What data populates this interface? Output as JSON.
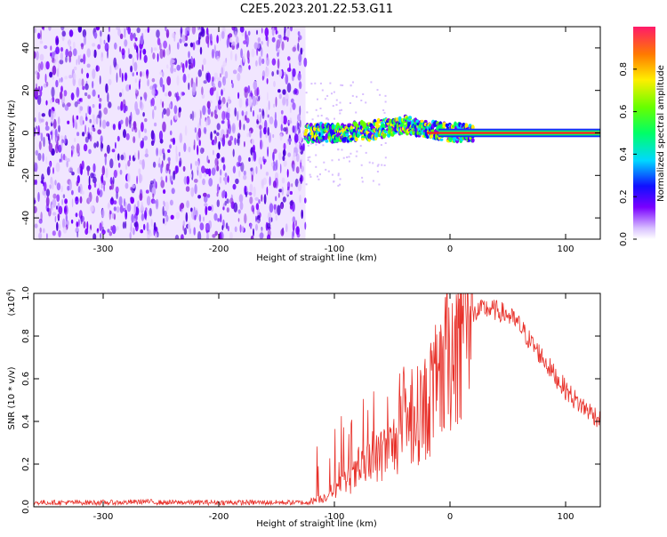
{
  "title": "C2E5.2023.201.22.53.G11",
  "chart_data": [
    {
      "type": "heatmap",
      "title": "C2E5.2023.201.22.53.G11",
      "xlabel": "Height of straight line (km)",
      "ylabel": "Frequency (Hz)",
      "xlim": [
        -360,
        130
      ],
      "ylim": [
        -50,
        50
      ],
      "xticks": [
        -300,
        -200,
        -100,
        0,
        100
      ],
      "yticks": [
        -40,
        -20,
        0,
        20,
        40
      ],
      "grid": false,
      "noise_region_x": [
        -360,
        -125
      ],
      "signal_track": {
        "x": [
          -125,
          -110,
          -100,
          -90,
          -80,
          -70,
          -60,
          -50,
          -40,
          -30,
          -20,
          -10,
          0,
          20,
          60,
          100,
          130
        ],
        "y": [
          0,
          0,
          0,
          0,
          1,
          1,
          2,
          3,
          4,
          3,
          2,
          1,
          0,
          0,
          0,
          0,
          0
        ]
      },
      "colorbar": {
        "label": "Normalized spectral amplitude",
        "range": [
          0.0,
          1.0
        ],
        "ticks": [
          0.0,
          0.2,
          0.4,
          0.6,
          0.8
        ]
      }
    },
    {
      "type": "line",
      "xlabel": "Height of straight line (km)",
      "ylabel": "SNR (10 * v/v)",
      "y_multiplier": "(x10^4)",
      "xlim": [
        -360,
        130
      ],
      "ylim": [
        0,
        1.0
      ],
      "xticks": [
        -300,
        -200,
        -100,
        0,
        100
      ],
      "yticks": [
        0.0,
        0.2,
        0.4,
        0.6,
        0.8,
        1.0
      ],
      "grid": false,
      "series": [
        {
          "color": "#e8312a",
          "x": [
            -360,
            -340,
            -320,
            -300,
            -280,
            -265,
            -250,
            -230,
            -200,
            -180,
            -160,
            -140,
            -125,
            -110,
            -100,
            -90,
            -80,
            -70,
            -60,
            -50,
            -45,
            -40,
            -30,
            -20,
            -10,
            0,
            10,
            20,
            30,
            40,
            50,
            60,
            70,
            80,
            90,
            100,
            110,
            120,
            130
          ],
          "values": [
            0.02,
            0.02,
            0.02,
            0.02,
            0.02,
            0.025,
            0.02,
            0.02,
            0.02,
            0.02,
            0.02,
            0.02,
            0.02,
            0.04,
            0.08,
            0.12,
            0.15,
            0.2,
            0.24,
            0.28,
            0.32,
            0.36,
            0.42,
            0.47,
            0.58,
            0.72,
            0.85,
            0.9,
            0.93,
            0.92,
            0.9,
            0.85,
            0.77,
            0.7,
            0.62,
            0.55,
            0.49,
            0.45,
            0.41
          ]
        }
      ]
    }
  ]
}
